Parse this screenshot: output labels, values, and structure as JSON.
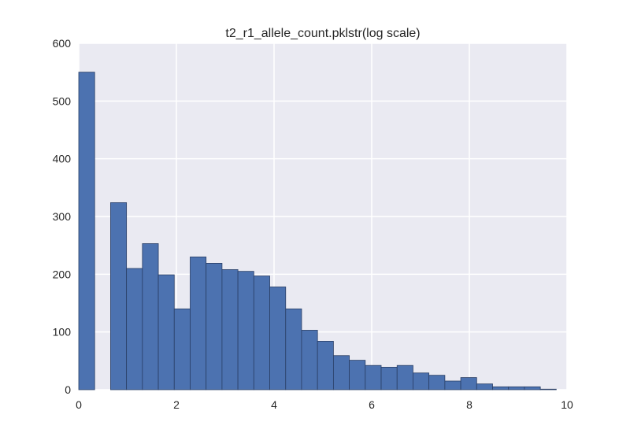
{
  "chart_data": {
    "type": "bar",
    "title": "t2_r1_allele_count.pklstr(log scale)",
    "xlabel": "",
    "ylabel": "",
    "xlim": [
      0,
      10
    ],
    "ylim": [
      0,
      600
    ],
    "xticks": [
      0,
      2,
      4,
      6,
      8,
      10
    ],
    "yticks": [
      0,
      100,
      200,
      300,
      400,
      500,
      600
    ],
    "grid": true,
    "background": "#eaeaf2",
    "bar_color": "#4c72b0",
    "bar_edge_color": "#2a3f66",
    "bins": [
      {
        "x0": 0.0,
        "x1": 0.326,
        "value": 550
      },
      {
        "x0": 0.652,
        "x1": 0.978,
        "value": 324
      },
      {
        "x0": 0.978,
        "x1": 1.304,
        "value": 210
      },
      {
        "x0": 1.304,
        "x1": 1.63,
        "value": 253
      },
      {
        "x0": 1.63,
        "x1": 1.956,
        "value": 199
      },
      {
        "x0": 1.956,
        "x1": 2.282,
        "value": 140
      },
      {
        "x0": 2.282,
        "x1": 2.608,
        "value": 230
      },
      {
        "x0": 2.608,
        "x1": 2.934,
        "value": 219
      },
      {
        "x0": 2.934,
        "x1": 3.26,
        "value": 208
      },
      {
        "x0": 3.26,
        "x1": 3.586,
        "value": 205
      },
      {
        "x0": 3.586,
        "x1": 3.912,
        "value": 197
      },
      {
        "x0": 3.912,
        "x1": 4.238,
        "value": 178
      },
      {
        "x0": 4.238,
        "x1": 4.564,
        "value": 140
      },
      {
        "x0": 4.564,
        "x1": 4.89,
        "value": 103
      },
      {
        "x0": 4.89,
        "x1": 5.216,
        "value": 84
      },
      {
        "x0": 5.216,
        "x1": 5.542,
        "value": 59
      },
      {
        "x0": 5.542,
        "x1": 5.868,
        "value": 51
      },
      {
        "x0": 5.868,
        "x1": 6.194,
        "value": 42
      },
      {
        "x0": 6.194,
        "x1": 6.52,
        "value": 39
      },
      {
        "x0": 6.52,
        "x1": 6.846,
        "value": 42
      },
      {
        "x0": 6.846,
        "x1": 7.172,
        "value": 29
      },
      {
        "x0": 7.172,
        "x1": 7.498,
        "value": 25
      },
      {
        "x0": 7.498,
        "x1": 7.824,
        "value": 15
      },
      {
        "x0": 7.824,
        "x1": 8.15,
        "value": 21
      },
      {
        "x0": 8.15,
        "x1": 8.476,
        "value": 10
      },
      {
        "x0": 8.476,
        "x1": 8.802,
        "value": 5
      },
      {
        "x0": 8.802,
        "x1": 9.128,
        "value": 5
      },
      {
        "x0": 9.128,
        "x1": 9.454,
        "value": 5
      },
      {
        "x0": 9.454,
        "x1": 9.78,
        "value": 1
      }
    ]
  }
}
